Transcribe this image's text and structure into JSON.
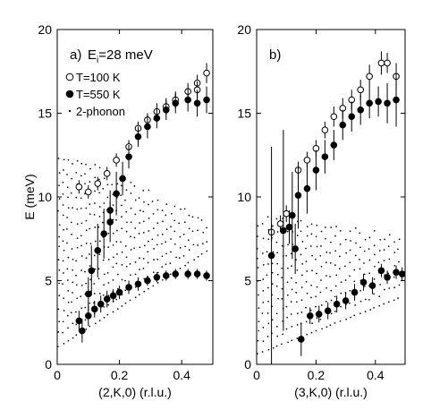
{
  "chart_data": [
    {
      "type": "scatter",
      "panel_label": "a)",
      "annotation": {
        "prefix": "E",
        "subscript": "i",
        "suffix": "=28 meV"
      },
      "xlabel": "(2,K,0) (r.l.u.)",
      "ylabel": "E (meV)",
      "xlim": [
        0,
        0.5
      ],
      "ylim": [
        0,
        20
      ],
      "xticks": [
        "0",
        "0.2",
        "0.4"
      ],
      "xtick_values": [
        0,
        0.2,
        0.4
      ],
      "yticks": [
        "0",
        "5",
        "10",
        "15",
        "20"
      ],
      "ytick_values": [
        0,
        5,
        10,
        15,
        20
      ],
      "legend": {
        "placement": "top-left",
        "entries": [
          {
            "marker": "open-circle",
            "label": "T=100 K"
          },
          {
            "marker": "filled-circle",
            "label": "T=550 K"
          },
          {
            "marker": "dot",
            "label": "2-phonon"
          }
        ]
      },
      "series": [
        {
          "name": "T=100 K",
          "marker": "open-circle",
          "points": [
            [
              0.1,
              10.3,
              0.4
            ],
            [
              0.13,
              10.8,
              0.4
            ],
            [
              0.07,
              10.6,
              0.4
            ],
            [
              0.16,
              11.4,
              0.4
            ],
            [
              0.19,
              12.2,
              0.4
            ],
            [
              0.23,
              13.0,
              0.4
            ],
            [
              0.26,
              14.1,
              0.4
            ],
            [
              0.29,
              14.6,
              0.4
            ],
            [
              0.32,
              15.1,
              0.5
            ],
            [
              0.35,
              15.4,
              0.5
            ],
            [
              0.38,
              15.8,
              0.5
            ],
            [
              0.42,
              16.3,
              0.5
            ],
            [
              0.45,
              16.8,
              0.5
            ],
            [
              0.48,
              17.4,
              0.6
            ],
            [
              0.45,
              16.4,
              0.5
            ]
          ]
        },
        {
          "name": "T=550 K",
          "marker": "filled-circle",
          "points": [
            [
              0.07,
              2.6,
              0.6
            ],
            [
              0.08,
              2.0,
              0.7
            ],
            [
              0.1,
              2.9,
              0.6
            ],
            [
              0.12,
              3.3,
              0.5
            ],
            [
              0.14,
              3.6,
              0.5
            ],
            [
              0.16,
              3.9,
              0.5
            ],
            [
              0.18,
              4.1,
              0.4
            ],
            [
              0.2,
              4.3,
              0.4
            ],
            [
              0.23,
              4.6,
              0.4
            ],
            [
              0.26,
              4.8,
              0.4
            ],
            [
              0.29,
              5.0,
              0.3
            ],
            [
              0.32,
              5.2,
              0.3
            ],
            [
              0.35,
              5.3,
              0.3
            ],
            [
              0.38,
              5.4,
              0.3
            ],
            [
              0.42,
              5.4,
              0.3
            ],
            [
              0.45,
              5.4,
              0.3
            ],
            [
              0.48,
              5.3,
              0.3
            ],
            [
              0.1,
              4.2,
              1.0
            ],
            [
              0.13,
              6.8,
              1.6
            ],
            [
              0.15,
              7.8,
              1.5
            ],
            [
              0.17,
              8.5,
              1.2
            ],
            [
              0.19,
              10.2,
              1.3
            ],
            [
              0.21,
              11.1,
              1.0
            ],
            [
              0.23,
              12.4,
              0.7
            ],
            [
              0.26,
              13.6,
              0.6
            ],
            [
              0.29,
              14.2,
              0.7
            ],
            [
              0.32,
              14.7,
              0.6
            ],
            [
              0.35,
              15.2,
              0.6
            ],
            [
              0.38,
              15.6,
              0.6
            ],
            [
              0.42,
              15.8,
              0.7
            ],
            [
              0.45,
              15.6,
              0.8
            ],
            [
              0.48,
              15.8,
              0.8
            ],
            [
              0.11,
              5.6,
              1.5
            ],
            [
              0.17,
              9.2,
              1.2
            ]
          ]
        }
      ]
    },
    {
      "type": "scatter",
      "panel_label": "b)",
      "xlabel": "(3,K,0) (r.l.u.)",
      "ylabel": "",
      "xlim": [
        0,
        0.5
      ],
      "ylim": [
        0,
        20
      ],
      "xticks": [
        "0",
        "0.2",
        "0.4"
      ],
      "xtick_values": [
        0,
        0.2,
        0.4
      ],
      "yticks": [
        "0",
        "5",
        "10",
        "15",
        "20"
      ],
      "ytick_values": [
        0,
        5,
        10,
        15,
        20
      ],
      "series": [
        {
          "name": "T=100 K",
          "marker": "open-circle",
          "points": [
            [
              0.05,
              7.9,
              0.5
            ],
            [
              0.08,
              8.4,
              0.5
            ],
            [
              0.1,
              9.0,
              0.5
            ],
            [
              0.14,
              11.6,
              0.5
            ],
            [
              0.17,
              12.2,
              0.5
            ],
            [
              0.2,
              12.9,
              0.5
            ],
            [
              0.23,
              14.0,
              0.5
            ],
            [
              0.26,
              14.8,
              0.6
            ],
            [
              0.29,
              15.3,
              0.6
            ],
            [
              0.32,
              15.8,
              0.6
            ],
            [
              0.35,
              16.4,
              0.6
            ],
            [
              0.38,
              17.2,
              0.7
            ],
            [
              0.42,
              18.0,
              0.7
            ],
            [
              0.44,
              18.0,
              0.6
            ],
            [
              0.47,
              17.2,
              0.8
            ]
          ]
        },
        {
          "name": "T=550 K",
          "marker": "filled-circle",
          "points": [
            [
              0.05,
              6.5,
              6.5
            ],
            [
              0.09,
              8.0,
              6.0
            ],
            [
              0.12,
              8.9,
              2.6
            ],
            [
              0.14,
              10.1,
              2.0
            ],
            [
              0.17,
              10.5,
              1.5
            ],
            [
              0.2,
              11.6,
              1.2
            ],
            [
              0.23,
              12.4,
              1.0
            ],
            [
              0.26,
              13.1,
              0.9
            ],
            [
              0.29,
              14.3,
              0.9
            ],
            [
              0.32,
              14.8,
              0.9
            ],
            [
              0.35,
              15.2,
              0.9
            ],
            [
              0.38,
              15.6,
              0.9
            ],
            [
              0.41,
              15.7,
              0.9
            ],
            [
              0.44,
              15.6,
              1.2
            ],
            [
              0.47,
              15.8,
              1.6
            ],
            [
              0.15,
              1.5,
              1.0
            ],
            [
              0.18,
              2.9,
              0.5
            ],
            [
              0.21,
              3.0,
              0.5
            ],
            [
              0.24,
              3.2,
              0.5
            ],
            [
              0.27,
              3.6,
              0.5
            ],
            [
              0.3,
              3.8,
              0.5
            ],
            [
              0.33,
              4.3,
              0.5
            ],
            [
              0.36,
              4.9,
              0.5
            ],
            [
              0.39,
              4.7,
              0.5
            ],
            [
              0.42,
              5.6,
              0.4
            ],
            [
              0.44,
              5.2,
              0.4
            ],
            [
              0.47,
              5.5,
              0.4
            ],
            [
              0.49,
              5.4,
              0.4
            ],
            [
              0.11,
              8.2,
              1.0
            ],
            [
              0.13,
              6.9,
              1.5
            ]
          ]
        }
      ]
    }
  ]
}
